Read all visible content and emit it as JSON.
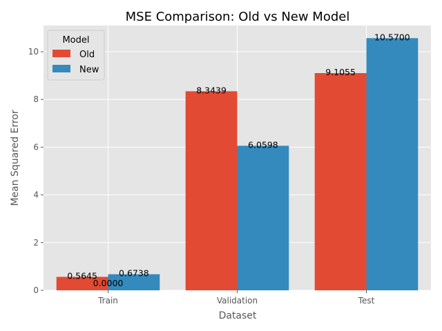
{
  "chart_data": {
    "type": "bar",
    "title": "MSE Comparison: Old vs New Model",
    "xlabel": "Dataset",
    "ylabel": "Mean Squared Error",
    "categories": [
      "Train",
      "Validation",
      "Test"
    ],
    "series": [
      {
        "name": "Old",
        "color": "#E24A33",
        "values": [
          0.5645,
          8.3439,
          9.1055
        ],
        "labels": [
          "0.5645",
          "8.3439",
          "9.1055"
        ]
      },
      {
        "name": "New",
        "color": "#348ABD",
        "values": [
          0.6738,
          6.0598,
          10.57
        ],
        "labels": [
          "0.6738",
          "6.0598",
          "10.5700"
        ]
      }
    ],
    "extra_annotations": [
      {
        "text": "0.0000",
        "category": "Train",
        "y": 0.17
      }
    ],
    "ylim": [
      0,
      11.1
    ],
    "yticks": [
      0,
      2,
      4,
      6,
      8,
      10
    ],
    "ytick_labels": [
      "0",
      "2",
      "4",
      "6",
      "8",
      "10"
    ],
    "grid": true,
    "legend": {
      "title": "Model",
      "position": "top-left",
      "entries": [
        "Old",
        "New"
      ]
    }
  }
}
